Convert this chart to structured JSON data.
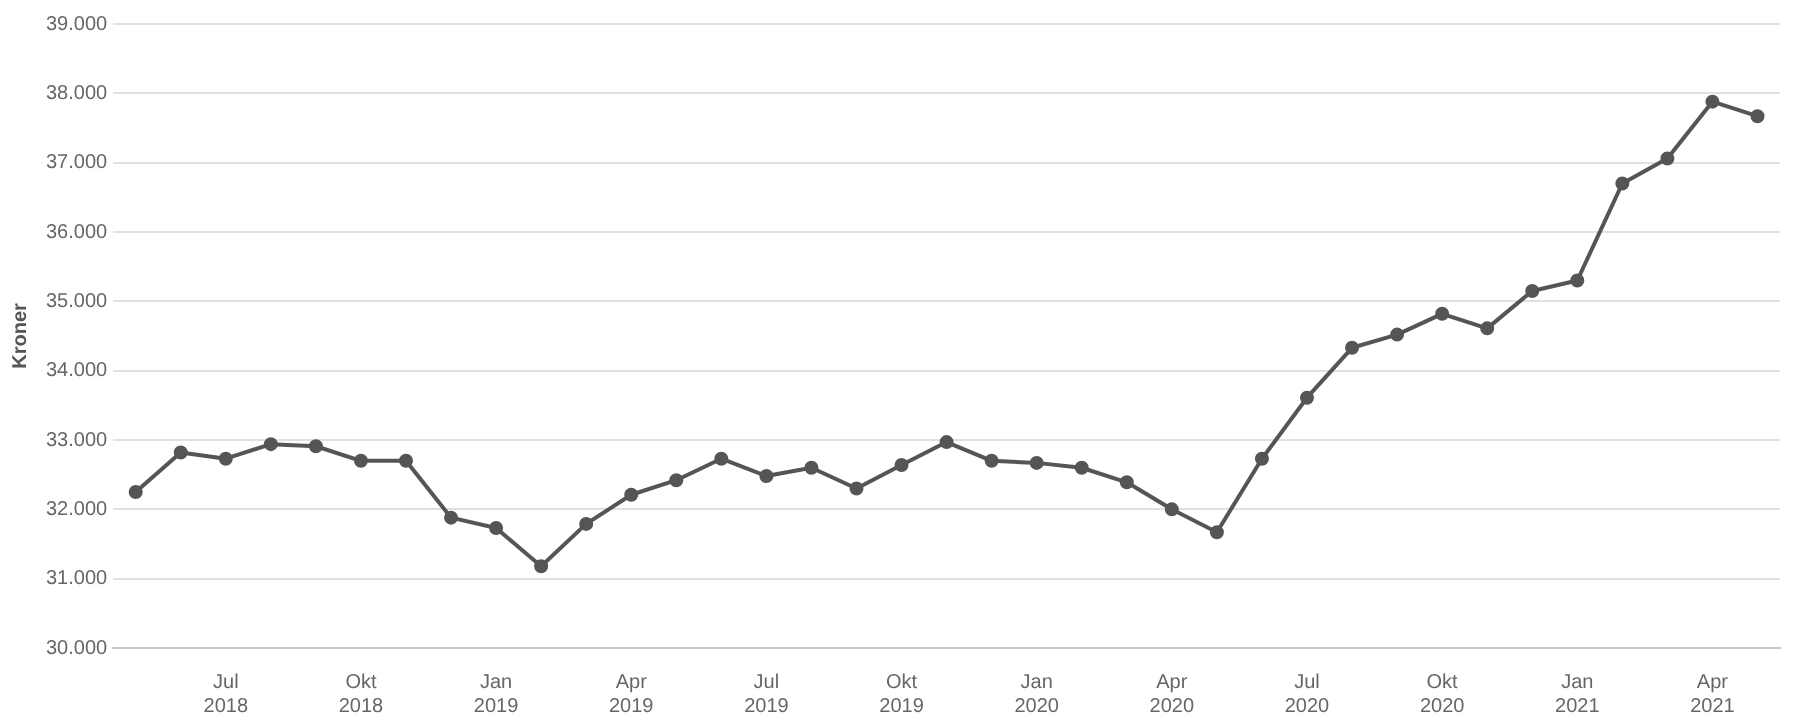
{
  "chart_data": {
    "type": "line",
    "ylabel": "Kroner",
    "categories": [
      null,
      null,
      "Jul 2018",
      null,
      null,
      "Okt 2018",
      null,
      null,
      "Jan 2019",
      null,
      null,
      "Apr 2019",
      null,
      null,
      "Jul 2019",
      null,
      null,
      "Okt 2019",
      null,
      null,
      "Jan 2020",
      null,
      null,
      "Apr 2020",
      null,
      null,
      "Jul 2020",
      null,
      null,
      "Okt 2020",
      null,
      null,
      "Jan 2021",
      null,
      null,
      "Apr 2021",
      null
    ],
    "series": [
      {
        "color": "#555555",
        "values": [
          32250,
          32820,
          32730,
          32940,
          32910,
          32700,
          32700,
          31880,
          31730,
          31180,
          31790,
          32210,
          32420,
          32730,
          32480,
          32600,
          32300,
          32640,
          32970,
          32700,
          32670,
          32600,
          32390,
          32000,
          31670,
          32730,
          33610,
          34330,
          34520,
          34820,
          34610,
          35150,
          35300,
          36700,
          37060,
          37880,
          37670
        ]
      }
    ],
    "ylim": [
      30000,
      39000
    ],
    "yticks": [
      {
        "value": 30000,
        "label": "30.000"
      },
      {
        "value": 31000,
        "label": "31.000"
      },
      {
        "value": 32000,
        "label": "32.000"
      },
      {
        "value": 33000,
        "label": "33.000"
      },
      {
        "value": 34000,
        "label": "34.000"
      },
      {
        "value": 35000,
        "label": "35.000"
      },
      {
        "value": 36000,
        "label": "36.000"
      },
      {
        "value": 37000,
        "label": "37.000"
      },
      {
        "value": 38000,
        "label": "38.000"
      },
      {
        "value": 39000,
        "label": "39.000"
      }
    ],
    "grid": "y",
    "legend": false,
    "marker": "circle",
    "line_style": "solid"
  }
}
